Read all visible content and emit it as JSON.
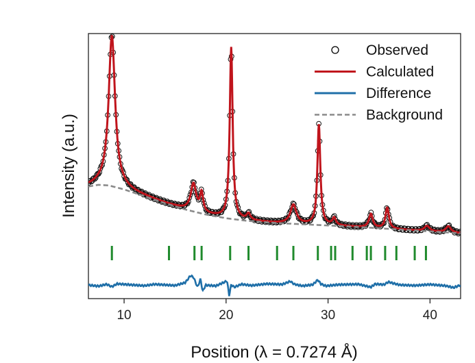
{
  "chart_data": {
    "type": "line",
    "title": "",
    "xlabel": "Position (λ = 0.7274 Å)",
    "ylabel": "Intensity (a.u.)",
    "xlim": [
      6.5,
      43
    ],
    "x_ticks": [
      10,
      20,
      30,
      40
    ],
    "y_tick_labels": false,
    "grid": false,
    "legend_position": "top-right",
    "legend": [
      {
        "label": "Observed",
        "style": "open-circle",
        "color": "#000000"
      },
      {
        "label": "Calculated",
        "style": "solid-line",
        "color": "#c0141c"
      },
      {
        "label": "Difference",
        "style": "solid-line",
        "color": "#1f6fa8"
      },
      {
        "label": "Background",
        "style": "dashed-line",
        "color": "#8a8a8a"
      }
    ],
    "background": {
      "x": [
        6.5,
        7.5,
        8.5,
        10,
        12,
        14,
        16,
        18,
        20,
        22,
        25,
        28,
        31,
        34,
        37,
        40,
        43
      ],
      "y": [
        0.222,
        0.23,
        0.227,
        0.208,
        0.175,
        0.142,
        0.112,
        0.088,
        0.07,
        0.058,
        0.047,
        0.04,
        0.033,
        0.025,
        0.016,
        0.007,
        -0.002
      ]
    },
    "peaks": [
      {
        "center": 8.8,
        "height": 0.72,
        "width": 0.38
      },
      {
        "center": 16.8,
        "height": 0.13,
        "width": 0.32
      },
      {
        "center": 17.6,
        "height": 0.09,
        "width": 0.18
      },
      {
        "center": 20.5,
        "height": 0.82,
        "width": 0.17
      },
      {
        "center": 22.2,
        "height": 0.03,
        "width": 0.22
      },
      {
        "center": 26.6,
        "height": 0.09,
        "width": 0.35
      },
      {
        "center": 29.1,
        "height": 0.48,
        "width": 0.17
      },
      {
        "center": 30.6,
        "height": 0.035,
        "width": 0.2
      },
      {
        "center": 34.2,
        "height": 0.065,
        "width": 0.22
      },
      {
        "center": 35.8,
        "height": 0.1,
        "width": 0.2
      },
      {
        "center": 39.7,
        "height": 0.025,
        "width": 0.3
      },
      {
        "center": 41.8,
        "height": 0.03,
        "width": 0.3
      }
    ],
    "bragg_positions": [
      8.8,
      14.4,
      16.9,
      17.6,
      20.4,
      22.2,
      25.0,
      26.6,
      29.0,
      30.3,
      30.7,
      32.4,
      33.8,
      34.2,
      35.6,
      36.7,
      38.5,
      39.6
    ],
    "difference": {
      "offset": -0.25,
      "x": [
        6.5,
        7.5,
        8.3,
        8.8,
        9.3,
        10.5,
        12,
        13,
        14,
        15,
        16,
        16.5,
        16.8,
        17.2,
        17.5,
        17.7,
        18,
        19,
        20.1,
        20.3,
        20.5,
        20.8,
        21.5,
        22.5,
        24,
        25.5,
        26.3,
        26.7,
        27.5,
        28.5,
        29.0,
        29.3,
        29.8,
        31,
        33,
        34.2,
        34.6,
        35.5,
        35.9,
        37,
        38.5,
        40,
        41.5,
        42.3,
        43
      ],
      "y": [
        0.0,
        -0.005,
        0.004,
        -0.008,
        0.006,
        0.002,
        -0.003,
        0.004,
        0.001,
        -0.002,
        0.012,
        0.045,
        0.038,
        -0.01,
        0.03,
        -0.03,
        0.0,
        -0.004,
        0.02,
        -0.05,
        0.002,
        -0.01,
        0.004,
        -0.002,
        0.006,
        0.003,
        0.018,
        0.004,
        -0.004,
        0.002,
        0.025,
        0.005,
        -0.004,
        0.002,
        0.004,
        -0.01,
        0.005,
        0.002,
        0.015,
        0.001,
        -0.002,
        0.003,
        -0.003,
        -0.012,
        0.0
      ]
    }
  }
}
